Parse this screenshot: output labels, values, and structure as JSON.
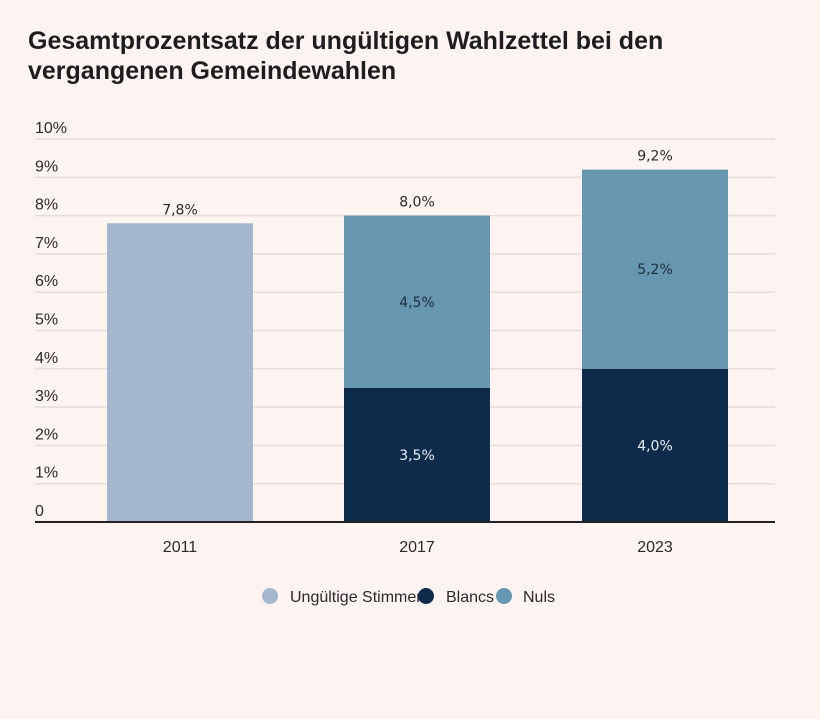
{
  "chart_data": {
    "type": "bar",
    "stacked": true,
    "title": "Gesamtprozentsatz der ungültigen Wahlzettel bei den vergangenen Gemeindewahlen",
    "xlabel": "",
    "ylabel": "",
    "categories": [
      "2011",
      "2017",
      "2023"
    ],
    "ylim": [
      0,
      10
    ],
    "yticks": [
      "0",
      "1%",
      "2%",
      "3%",
      "4%",
      "5%",
      "6%",
      "7%",
      "8%",
      "9%",
      "10%"
    ],
    "grid": true,
    "legend_position": "bottom",
    "series": [
      {
        "name": "Ungültige Stimmen",
        "color": "#a3b8cc",
        "values": [
          7.8,
          0,
          0
        ],
        "labels": [
          "",
          "",
          ""
        ]
      },
      {
        "name": "Blancs",
        "color": "#0f2b4b",
        "values": [
          0,
          3.5,
          4.0
        ],
        "labels": [
          "",
          "3,5%",
          "4,0%"
        ]
      },
      {
        "name": "Nuls",
        "color": "#6796b0",
        "values": [
          0,
          4.5,
          5.2
        ],
        "labels": [
          "",
          "4,5%",
          "5,2%"
        ]
      }
    ],
    "totals": [
      "7,8%",
      "8,0%",
      "9,2%"
    ]
  }
}
